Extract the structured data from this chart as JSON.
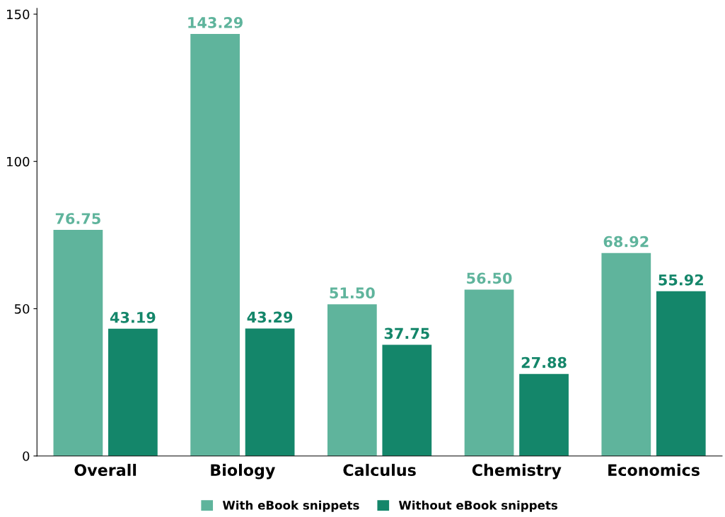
{
  "chart_data": {
    "type": "bar",
    "categories": [
      "Overall",
      "Biology",
      "Calculus",
      "Chemistry",
      "Economics"
    ],
    "series": [
      {
        "name": "With eBook snippets",
        "color": "#5fb49c",
        "values": [
          76.75,
          143.29,
          51.5,
          56.5,
          68.92
        ],
        "value_labels": [
          "76.75",
          "143.29",
          "51.50",
          "56.50",
          "68.92"
        ]
      },
      {
        "name": "Without eBook snippets",
        "color": "#14866a",
        "values": [
          43.19,
          43.29,
          37.75,
          27.88,
          55.92
        ],
        "value_labels": [
          "43.19",
          "43.29",
          "37.75",
          "27.88",
          "55.92"
        ]
      }
    ],
    "ylim": [
      0,
      152
    ],
    "yticks": [
      0,
      50,
      100,
      150
    ],
    "grid": false,
    "legend": "bottom"
  }
}
